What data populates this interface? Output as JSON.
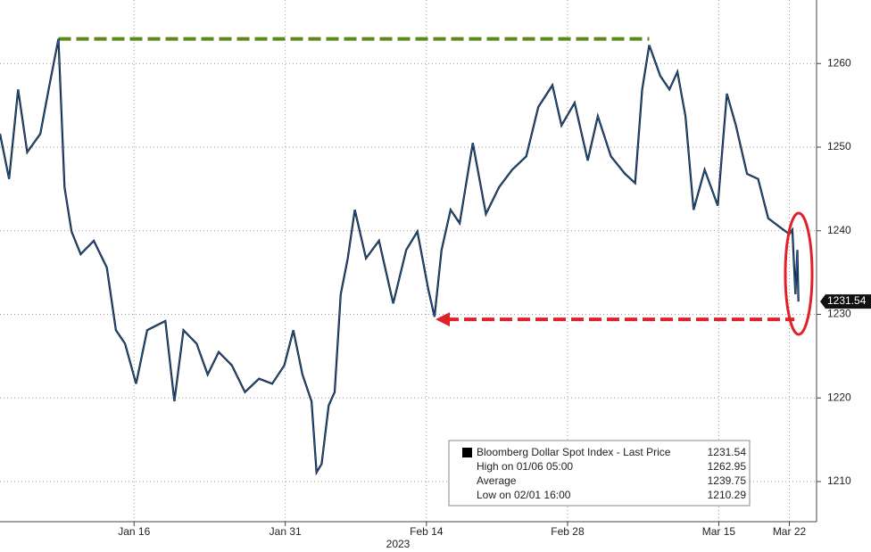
{
  "chart_data": {
    "type": "line",
    "series": [
      {
        "name": "Bloomberg Dollar Spot Index - Last Price",
        "color": "#1f5fa8",
        "last_value": 1231.54,
        "x": [
          2.7,
          3.6,
          4.5,
          5.4,
          6.7,
          7.6,
          8.5,
          9.1,
          9.8,
          10.7,
          12.0,
          13.3,
          14.2,
          15.1,
          16.2,
          17.3,
          19.1,
          20.0,
          20.9,
          22.2,
          23.3,
          24.4,
          25.7,
          27.0,
          28.4,
          29.7,
          30.9,
          31.8,
          32.7,
          33.6,
          34.1,
          34.6,
          35.3,
          35.9,
          36.5,
          37.2,
          37.9,
          39.0,
          40.3,
          41.7,
          43.0,
          44.1,
          45.2,
          45.8,
          46.5,
          47.4,
          48.3,
          49.6,
          50.9,
          52.2,
          53.5,
          54.9,
          56.1,
          57.5,
          58.4,
          59.7,
          61.0,
          62.0,
          63.3,
          64.7,
          65.7,
          66.4,
          67.1,
          68.2,
          69.1,
          69.9,
          70.7,
          71.5,
          72.6,
          73.9,
          74.8,
          75.7,
          76.8,
          77.9,
          78.9,
          80.1,
          81.0,
          81.3,
          81.6,
          81.8,
          81.9
        ],
        "values": [
          1251.6,
          1246.2,
          1256.9,
          1249.4,
          1251.6,
          1257.4,
          1262.95,
          1245.2,
          1239.9,
          1237.2,
          1238.8,
          1235.6,
          1228.1,
          1226.5,
          1221.7,
          1228.1,
          1229.2,
          1219.6,
          1228.1,
          1226.5,
          1222.8,
          1225.5,
          1223.9,
          1220.7,
          1222.3,
          1221.7,
          1223.9,
          1228.1,
          1222.8,
          1219.6,
          1211.1,
          1212.1,
          1219.1,
          1220.7,
          1232.4,
          1236.7,
          1242.5,
          1236.7,
          1238.8,
          1231.3,
          1237.7,
          1239.9,
          1232.9,
          1229.7,
          1237.7,
          1242.5,
          1240.9,
          1250.5,
          1242.0,
          1245.2,
          1247.3,
          1248.9,
          1254.8,
          1257.4,
          1252.6,
          1255.3,
          1248.4,
          1253.7,
          1248.9,
          1246.8,
          1245.7,
          1256.9,
          1262.2,
          1258.5,
          1256.9,
          1259.0,
          1253.7,
          1242.5,
          1247.3,
          1243.0,
          1256.4,
          1252.6,
          1246.8,
          1246.2,
          1241.5,
          1240.4,
          1239.6,
          1240.1,
          1232.4,
          1237.7,
          1231.54
        ]
      }
    ],
    "stats": [
      {
        "label": "High on 01/06 05:00",
        "value": 1262.95
      },
      {
        "label": "Average",
        "value": 1239.75
      },
      {
        "label": "Low on 02/01 16:00",
        "value": 1210.29
      }
    ],
    "reference_lines": [
      {
        "value": 1262.95,
        "from": 8.5,
        "to": 67.1,
        "color": "#5a8a1a"
      },
      {
        "value": 1229.4,
        "from": 45.9,
        "to": 81.5,
        "color": "#e0202a"
      }
    ],
    "xlim": [
      2.7,
      83.7
    ],
    "xticks": [
      {
        "value": 16,
        "label": "Jan 16"
      },
      {
        "value": 31,
        "label": "Jan 31"
      },
      {
        "value": 45,
        "label": "Feb 14"
      },
      {
        "value": 59,
        "label": "Feb 28"
      },
      {
        "value": 74,
        "label": "Mar 15"
      },
      {
        "value": 81,
        "label": "Mar 22"
      }
    ],
    "x_year": "2023",
    "ylim": [
      1205.2,
      1267.6
    ],
    "yticks": [
      1210,
      1220,
      1230,
      1240,
      1250,
      1260
    ],
    "grid": true
  }
}
